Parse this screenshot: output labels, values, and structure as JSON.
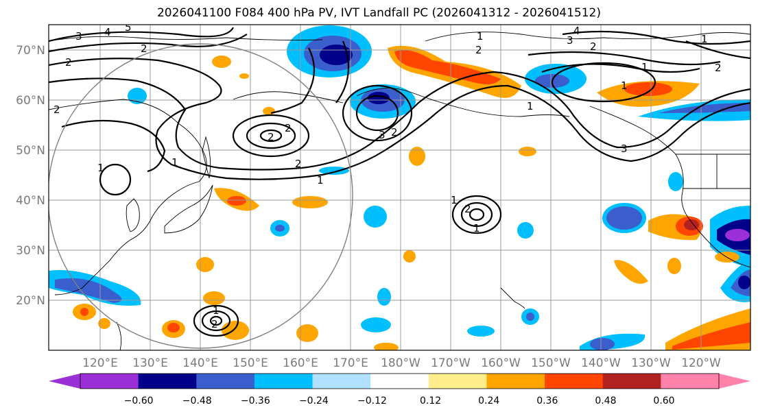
{
  "title": "2026041100 F084 400 hPa PV, IVT Landfall PC (2026041312 - 2026041512)",
  "lat_labels": [
    "70°N",
    "60°N",
    "50°N",
    "40°N",
    "30°N",
    "20°N"
  ],
  "lon_labels": [
    "120°E",
    "130°E",
    "140°E",
    "150°E",
    "160°E",
    "170°E",
    "180°W",
    "170°W",
    "160°W",
    "150°W",
    "140°W",
    "130°W",
    "120°W"
  ],
  "colorbar": {
    "ticks": [
      "−0.60",
      "−0.48",
      "−0.36",
      "−0.24",
      "−0.12",
      "0.12",
      "0.24",
      "0.36",
      "0.48",
      "0.60"
    ],
    "colors": [
      "#9b30d8",
      "#00008b",
      "#3a5fcd",
      "#00bfff",
      "#b0e2ff",
      "#ffffff",
      "#ffec8b",
      "#ffa500",
      "#ff4500",
      "#b22222",
      "#ff82ab"
    ]
  },
  "contour_labels": [
    "3",
    "4",
    "5",
    "2",
    "2",
    "1",
    "2",
    "3",
    "4",
    "2",
    "1",
    "2",
    "1",
    "2",
    "2",
    "2",
    "3",
    "2",
    "1",
    "1",
    "2",
    "1",
    "1",
    "2",
    "1",
    "1",
    "2",
    "1",
    "3",
    "1"
  ]
}
